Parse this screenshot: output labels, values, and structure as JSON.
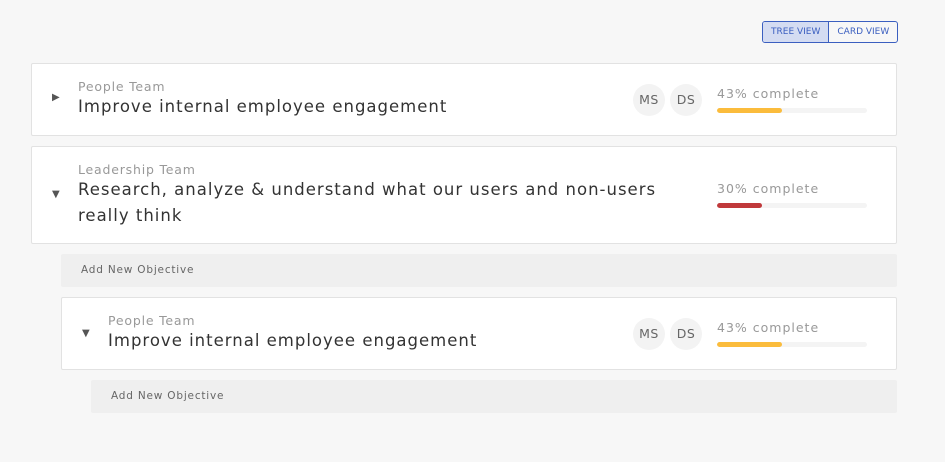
{
  "view_toggle": {
    "tree": "TREE VIEW",
    "card": "CARD VIEW",
    "active": "tree"
  },
  "objectives": [
    {
      "team": "People Team",
      "title": "Improve internal employee engagement",
      "owners": [
        "MS",
        "DS"
      ],
      "progress_label": "43% complete",
      "progress": 43,
      "color": "#fbbc3c",
      "expanded": false
    },
    {
      "team": "Leadership Team",
      "title": "Research, analyze & understand what our users and non-users really think",
      "owners": [],
      "progress_label": "30% complete",
      "progress": 30,
      "color": "#c0393b",
      "expanded": true
    },
    {
      "team": "People Team",
      "title": "Improve internal employee engagement",
      "owners": [
        "MS",
        "DS"
      ],
      "progress_label": "43% complete",
      "progress": 43,
      "color": "#fbbc3c",
      "expanded": true
    }
  ],
  "add_objective_label": "Add New Objective",
  "icons": {
    "collapsed": "caret-right-icon",
    "expanded": "caret-down-icon"
  }
}
